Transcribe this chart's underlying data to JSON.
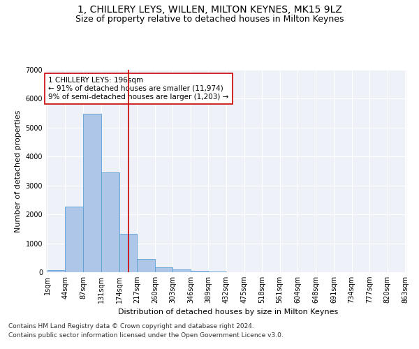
{
  "title": "1, CHILLERY LEYS, WILLEN, MILTON KEYNES, MK15 9LZ",
  "subtitle": "Size of property relative to detached houses in Milton Keynes",
  "xlabel": "Distribution of detached houses by size in Milton Keynes",
  "ylabel": "Number of detached properties",
  "footnote1": "Contains HM Land Registry data © Crown copyright and database right 2024.",
  "footnote2": "Contains public sector information licensed under the Open Government Licence v3.0.",
  "annotation_title": "1 CHILLERY LEYS: 196sqm",
  "annotation_line1": "← 91% of detached houses are smaller (11,974)",
  "annotation_line2": "9% of semi-detached houses are larger (1,203) →",
  "bar_edges": [
    1,
    44,
    87,
    131,
    174,
    217,
    260,
    303,
    346,
    389,
    432,
    475,
    518,
    561,
    604,
    648,
    691,
    734,
    777,
    820,
    863
  ],
  "bar_heights": [
    80,
    2280,
    5480,
    3450,
    1330,
    470,
    165,
    90,
    50,
    20,
    0,
    0,
    0,
    0,
    0,
    0,
    0,
    0,
    0,
    0
  ],
  "bar_color": "#aec6e8",
  "bar_edge_color": "#5a9fd4",
  "vline_x": 196,
  "vline_color": "#cc0000",
  "bg_color": "#eef2f8",
  "grid_color": "#ffffff",
  "ylim": [
    0,
    7000
  ],
  "yticks": [
    0,
    1000,
    2000,
    3000,
    4000,
    5000,
    6000,
    7000
  ],
  "title_fontsize": 10,
  "subtitle_fontsize": 9,
  "axis_label_fontsize": 8,
  "tick_fontsize": 7,
  "annotation_fontsize": 7.5,
  "footnote_fontsize": 6.5
}
